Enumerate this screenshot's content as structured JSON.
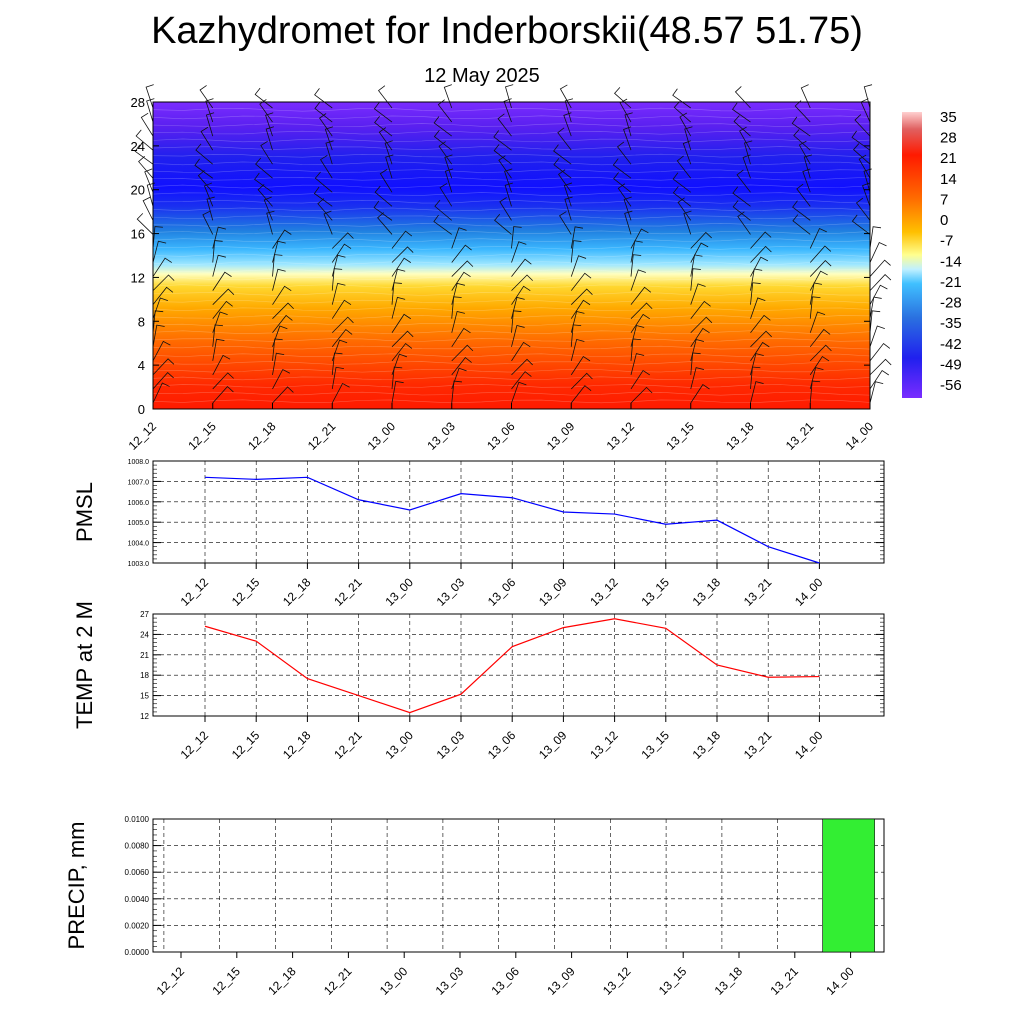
{
  "title": "Kazhydromet for Inderborskii(48.57 51.75)",
  "subtitle": "12 May 2025",
  "chart_data": [
    {
      "type": "heatmap",
      "x_labels": [
        "12_12",
        "12_15",
        "12_18",
        "12_21",
        "13_00",
        "13_03",
        "13_06",
        "13_09",
        "13_12",
        "13_15",
        "13_18",
        "13_21",
        "14_00"
      ],
      "y_ticks": [
        "0",
        "4",
        "8",
        "12",
        "16",
        "20",
        "24",
        "28"
      ],
      "ylim": [
        0,
        28
      ],
      "colorbar_labels": [
        "35",
        "28",
        "21",
        "14",
        "7",
        "0",
        "-7",
        "-14",
        "-21",
        "-28",
        "-35",
        "-42",
        "-49",
        "-56"
      ],
      "colors": {
        "warm_high": "#ff0000",
        "mid": "#ffff80",
        "cold": "#3366ff",
        "coldest": "#7a2cff"
      },
      "overlay": "wind barbs"
    },
    {
      "type": "line",
      "ylabel": "PMSL",
      "x": [
        "12_12",
        "12_15",
        "12_18",
        "12_21",
        "13_00",
        "13_03",
        "13_06",
        "13_09",
        "13_12",
        "13_15",
        "13_18",
        "13_21",
        "14_00"
      ],
      "values": [
        1007.2,
        1007.1,
        1007.2,
        1006.1,
        1005.6,
        1006.4,
        1006.2,
        1005.5,
        1005.4,
        1004.9,
        1005.1,
        1003.8,
        1003.0
      ],
      "y_ticks": [
        "1003.0",
        "1004.0",
        "1005.0",
        "1006.0",
        "1007.0",
        "1008.0"
      ],
      "ylim": [
        1003.0,
        1008.0
      ],
      "color": "#0000ff",
      "grid": true
    },
    {
      "type": "line",
      "ylabel": "TEMP at 2 M",
      "x": [
        "12_12",
        "12_15",
        "12_18",
        "12_21",
        "13_00",
        "13_03",
        "13_06",
        "13_09",
        "13_12",
        "13_15",
        "13_18",
        "13_21",
        "14_00"
      ],
      "values": [
        25.2,
        23.0,
        17.5,
        15.0,
        12.5,
        15.2,
        22.2,
        25.0,
        26.3,
        24.9,
        19.5,
        17.7,
        17.8
      ],
      "y_ticks": [
        "12",
        "15",
        "18",
        "21",
        "24",
        "27"
      ],
      "ylim": [
        12,
        27
      ],
      "color": "#ff0000",
      "grid": true
    },
    {
      "type": "bar",
      "ylabel": "PRECIP, mm",
      "categories": [
        "12_12",
        "12_15",
        "12_18",
        "12_21",
        "13_00",
        "13_03",
        "13_06",
        "13_09",
        "13_12",
        "13_15",
        "13_18",
        "13_21",
        "14_00"
      ],
      "values": [
        0,
        0,
        0,
        0,
        0,
        0,
        0,
        0,
        0,
        0,
        0,
        0,
        0.01
      ],
      "y_ticks": [
        "0.0000",
        "0.0020",
        "0.0040",
        "0.0060",
        "0.0080",
        "0.0100"
      ],
      "ylim": [
        0,
        0.01
      ],
      "color": "#33ee33",
      "grid": true
    }
  ]
}
